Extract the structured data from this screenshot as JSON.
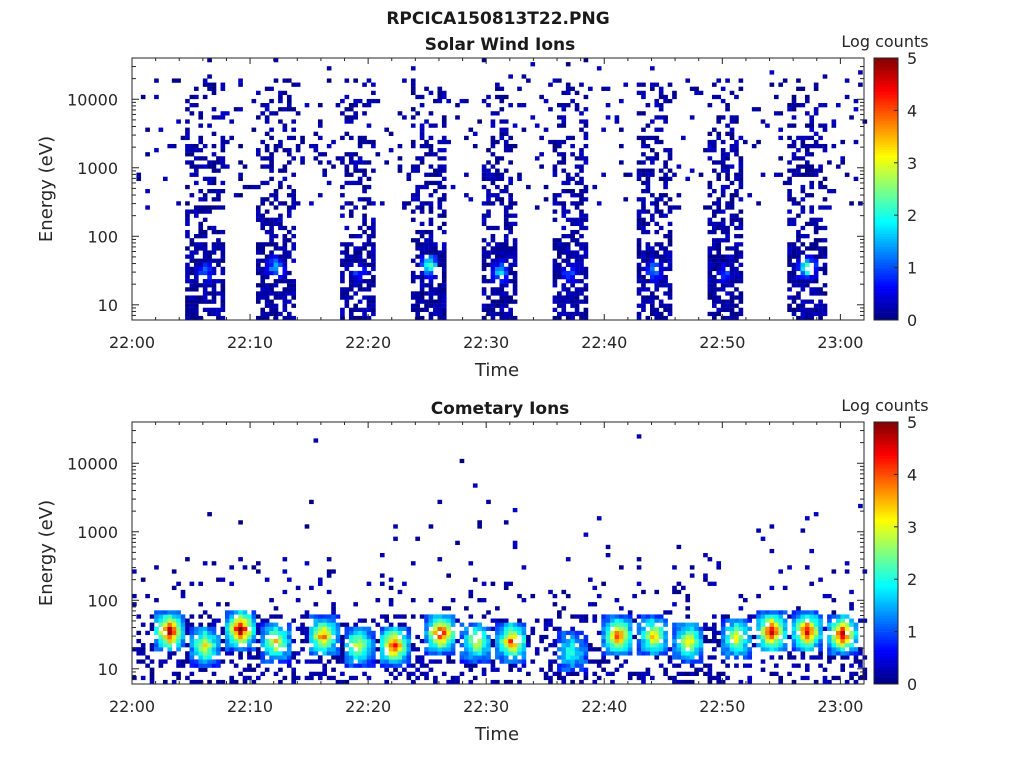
{
  "figure": {
    "title": "RPCICA150813T22.PNG"
  },
  "chart_data": [
    {
      "type": "heatmap",
      "title": "Solar Wind Ions",
      "xlabel": "Time",
      "ylabel": "Energy (eV)",
      "xlim": [
        "22:00",
        "23:02"
      ],
      "ylim": [
        6,
        40000
      ],
      "yscale": "log",
      "x_ticks": [
        "22:00",
        "22:10",
        "22:20",
        "22:30",
        "22:40",
        "22:50",
        "23:00"
      ],
      "y_ticks": [
        "10",
        "100",
        "1000",
        "10000"
      ],
      "colorbar": {
        "label": "Log counts",
        "ticks": [
          "0",
          "1",
          "2",
          "3",
          "4",
          "5"
        ],
        "range": [
          0,
          5
        ],
        "colormap": "jet"
      },
      "grid": false,
      "bursts": [
        {
          "center_time": "22:06",
          "peak_energy": 30,
          "peak_log_counts": 1.2
        },
        {
          "center_time": "22:12",
          "peak_energy": 35,
          "peak_log_counts": 1.7
        },
        {
          "center_time": "22:19",
          "peak_energy": 30,
          "peak_log_counts": 1.0
        },
        {
          "center_time": "22:25",
          "peak_energy": 38,
          "peak_log_counts": 2.6
        },
        {
          "center_time": "22:31",
          "peak_energy": 30,
          "peak_log_counts": 1.8
        },
        {
          "center_time": "22:37",
          "peak_energy": 30,
          "peak_log_counts": 1.3
        },
        {
          "center_time": "22:44",
          "peak_energy": 32,
          "peak_log_counts": 1.5
        },
        {
          "center_time": "22:50",
          "peak_energy": 28,
          "peak_log_counts": 1.1
        },
        {
          "center_time": "22:57",
          "peak_energy": 35,
          "peak_log_counts": 2.6
        }
      ]
    },
    {
      "type": "heatmap",
      "title": "Cometary Ions",
      "xlabel": "Time",
      "ylabel": "Energy (eV)",
      "xlim": [
        "22:00",
        "23:02"
      ],
      "ylim": [
        6,
        40000
      ],
      "yscale": "log",
      "x_ticks": [
        "22:00",
        "22:10",
        "22:20",
        "22:30",
        "22:40",
        "22:50",
        "23:00"
      ],
      "y_ticks": [
        "10",
        "100",
        "1000",
        "10000"
      ],
      "colorbar": {
        "label": "Log counts",
        "ticks": [
          "0",
          "1",
          "2",
          "3",
          "4",
          "5"
        ],
        "range": [
          0,
          5
        ],
        "colormap": "jet"
      },
      "grid": false,
      "bursts": [
        {
          "center_time": "22:03",
          "peak_energy": 35,
          "peak_log_counts": 4.3
        },
        {
          "center_time": "22:06",
          "peak_energy": 22,
          "peak_log_counts": 2.5
        },
        {
          "center_time": "22:09",
          "peak_energy": 38,
          "peak_log_counts": 4.4
        },
        {
          "center_time": "22:12",
          "peak_energy": 25,
          "peak_log_counts": 2.7
        },
        {
          "center_time": "22:16",
          "peak_energy": 30,
          "peak_log_counts": 3.3
        },
        {
          "center_time": "22:19",
          "peak_energy": 22,
          "peak_log_counts": 2.4
        },
        {
          "center_time": "22:22",
          "peak_energy": 22,
          "peak_log_counts": 3.9
        },
        {
          "center_time": "22:26",
          "peak_energy": 33,
          "peak_log_counts": 4.0
        },
        {
          "center_time": "22:29",
          "peak_energy": 25,
          "peak_log_counts": 2.5
        },
        {
          "center_time": "22:32",
          "peak_energy": 25,
          "peak_log_counts": 3.6
        },
        {
          "center_time": "22:37",
          "peak_energy": 18,
          "peak_log_counts": 1.5
        },
        {
          "center_time": "22:41",
          "peak_energy": 30,
          "peak_log_counts": 3.6
        },
        {
          "center_time": "22:44",
          "peak_energy": 30,
          "peak_log_counts": 2.8
        },
        {
          "center_time": "22:47",
          "peak_energy": 25,
          "peak_log_counts": 2.7
        },
        {
          "center_time": "22:51",
          "peak_energy": 28,
          "peak_log_counts": 2.5
        },
        {
          "center_time": "22:54",
          "peak_energy": 35,
          "peak_log_counts": 4.2
        },
        {
          "center_time": "22:57",
          "peak_energy": 35,
          "peak_log_counts": 4.0
        },
        {
          "center_time": "23:00",
          "peak_energy": 32,
          "peak_log_counts": 4.2
        }
      ]
    }
  ]
}
